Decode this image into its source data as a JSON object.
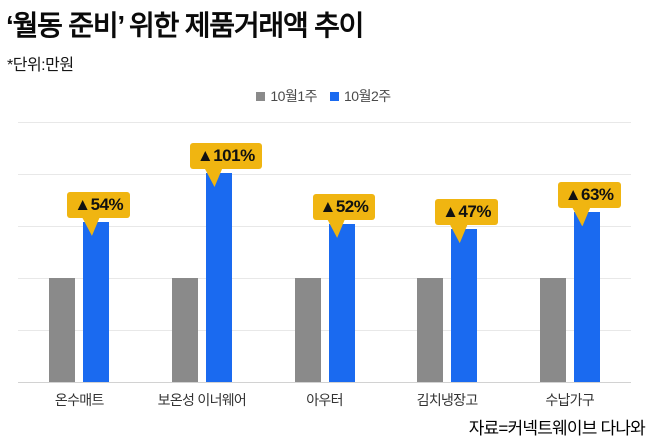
{
  "chart_data": {
    "type": "bar",
    "title": "‘월동 준비’ 위한 제품거래액 추이",
    "unit_note": "*단위:만원",
    "source": "자료=커넥트웨이브 다나와",
    "categories": [
      "온수매트",
      "보온성 이너웨어",
      "아우터",
      "김치냉장고",
      "수납가구"
    ],
    "series": [
      {
        "name": "10월1주",
        "color": "#8a8a8a",
        "values": [
          100,
          100,
          100,
          100,
          100
        ]
      },
      {
        "name": "10월2주",
        "color": "#1a6af0",
        "values": [
          154,
          201,
          152,
          147,
          163
        ]
      }
    ],
    "data_labels": {
      "on_series": "10월2주",
      "values": [
        "▲54%",
        "▲101%",
        "▲52%",
        "▲47%",
        "▲63%"
      ],
      "bubble_color": "#f0b511",
      "text_color": "#111111"
    },
    "ylim": [
      0,
      250
    ],
    "grid_step": 50,
    "grid": true,
    "y_axis_tick_labels_visible": false,
    "legend_position": "top",
    "colors": {
      "grid": "#e8e8e8",
      "baseline": "#d2d2d2",
      "x_label": "#333333",
      "legend_text": "#4a4a4a"
    }
  }
}
